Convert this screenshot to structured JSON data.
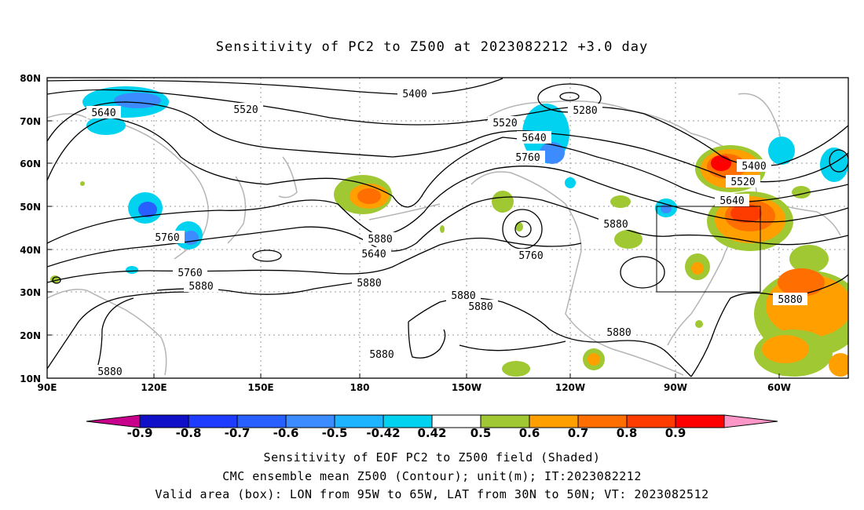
{
  "title": "Sensitivity of PC2 to Z500 at 2023082212 +3.0 day",
  "lat_labels": [
    "80N",
    "70N",
    "60N",
    "50N",
    "40N",
    "30N",
    "20N",
    "10N"
  ],
  "lon_labels": [
    "90E",
    "120E",
    "150E",
    "180",
    "150W",
    "120W",
    "90W",
    "60W"
  ],
  "contour_labels": [
    {
      "text": "5640"
    },
    {
      "text": "5520"
    },
    {
      "text": "5400"
    },
    {
      "text": "5280"
    },
    {
      "text": "5520"
    },
    {
      "text": "5640"
    },
    {
      "text": "5760"
    },
    {
      "text": "5400"
    },
    {
      "text": "5520"
    },
    {
      "text": "5640"
    },
    {
      "text": "5760"
    },
    {
      "text": "5880"
    },
    {
      "text": "5880"
    },
    {
      "text": "5640"
    },
    {
      "text": "5760"
    },
    {
      "text": "5880"
    },
    {
      "text": "5760"
    },
    {
      "text": "5880"
    },
    {
      "text": "5880"
    },
    {
      "text": "5880"
    },
    {
      "text": "5880"
    },
    {
      "text": "5880"
    },
    {
      "text": "5880"
    },
    {
      "text": "5880"
    }
  ],
  "colorbar": {
    "labels": [
      "-0.9",
      "-0.8",
      "-0.7",
      "-0.6",
      "-0.5",
      "-0.42",
      "0.42",
      "0.5",
      "0.6",
      "0.7",
      "0.8",
      "0.9"
    ],
    "colors": [
      "#c8008c",
      "#1010c8",
      "#1e3cff",
      "#2860ff",
      "#3c8cff",
      "#1eb4ff",
      "#00d2f0",
      "#ffffff",
      "#a0c832",
      "#ffa000",
      "#ff6e00",
      "#ff3c00",
      "#ff0000",
      "#ff96c8"
    ]
  },
  "valid_box": {
    "lon_from": "95W",
    "lon_to": "65W",
    "lat_from": "30N",
    "lat_to": "50N"
  },
  "captions": {
    "line1": "Sensitivity of EOF PC2 to Z500 field (Shaded)",
    "line2": "CMC ensemble mean Z500 (Contour); unit(m); IT:2023082212",
    "line3": "Valid area (box): LON from 95W to 65W, LAT from 30N to 50N; VT: 2023082512"
  }
}
